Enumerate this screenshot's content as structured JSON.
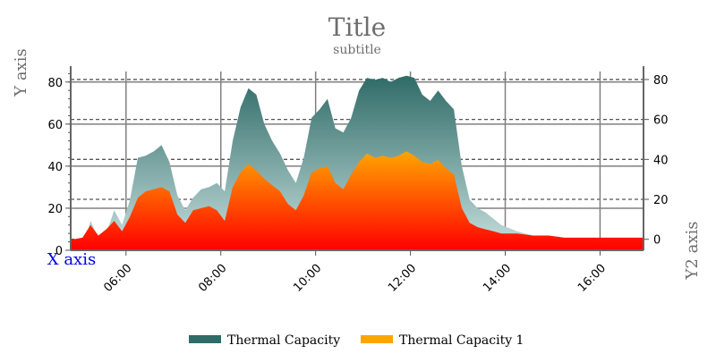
{
  "chart_data": {
    "type": "area",
    "title": "Title",
    "subtitle": "subtitle",
    "xlabel": "X axis",
    "ylabel": "Y axis",
    "y2label": "Y2 axis",
    "legend_position": "bottom-center",
    "grid": true,
    "xlim": [
      "04:50",
      "16:55"
    ],
    "xticks": [
      "06:00",
      "08:00",
      "10:00",
      "12:00",
      "14:00",
      "16:00"
    ],
    "ylim": [
      0,
      85
    ],
    "yticks": [
      0,
      20,
      40,
      60,
      80
    ],
    "y2lim": [
      -5.5,
      84
    ],
    "y2ticks": [
      0,
      20,
      40,
      60,
      80
    ],
    "series": [
      {
        "name": "Thermal Capacity",
        "color_top": "#2f6b67",
        "color_bottom": "#c7e0df",
        "points": [
          [
            "04:50",
            0
          ],
          [
            "05:05",
            0
          ],
          [
            "05:15",
            14
          ],
          [
            "05:25",
            6
          ],
          [
            "05:35",
            8
          ],
          [
            "05:45",
            19
          ],
          [
            "05:55",
            12
          ],
          [
            "06:05",
            24
          ],
          [
            "06:15",
            44
          ],
          [
            "06:25",
            45
          ],
          [
            "06:35",
            47
          ],
          [
            "06:45",
            50
          ],
          [
            "06:55",
            42
          ],
          [
            "07:05",
            26
          ],
          [
            "07:15",
            19
          ],
          [
            "07:25",
            25
          ],
          [
            "07:35",
            29
          ],
          [
            "07:45",
            30
          ],
          [
            "07:55",
            32
          ],
          [
            "08:05",
            28
          ],
          [
            "08:15",
            52
          ],
          [
            "08:25",
            68
          ],
          [
            "08:35",
            77
          ],
          [
            "08:45",
            74
          ],
          [
            "08:55",
            60
          ],
          [
            "09:05",
            52
          ],
          [
            "09:15",
            46
          ],
          [
            "09:25",
            38
          ],
          [
            "09:35",
            32
          ],
          [
            "09:45",
            44
          ],
          [
            "09:55",
            63
          ],
          [
            "10:05",
            67
          ],
          [
            "10:15",
            72
          ],
          [
            "10:25",
            58
          ],
          [
            "10:35",
            56
          ],
          [
            "10:45",
            63
          ],
          [
            "10:55",
            76
          ],
          [
            "11:05",
            82
          ],
          [
            "11:15",
            81
          ],
          [
            "11:25",
            82
          ],
          [
            "11:35",
            80
          ],
          [
            "11:45",
            82
          ],
          [
            "11:55",
            83
          ],
          [
            "12:05",
            82
          ],
          [
            "12:15",
            74
          ],
          [
            "12:25",
            71
          ],
          [
            "12:35",
            76
          ],
          [
            "12:45",
            71
          ],
          [
            "12:55",
            67
          ],
          [
            "13:05",
            40
          ],
          [
            "13:15",
            24
          ],
          [
            "13:25",
            20
          ],
          [
            "13:35",
            18
          ],
          [
            "13:45",
            15
          ],
          [
            "13:55",
            12
          ],
          [
            "14:15",
            9
          ],
          [
            "14:35",
            7
          ],
          [
            "14:55",
            5
          ],
          [
            "15:15",
            4
          ],
          [
            "15:35",
            3
          ],
          [
            "15:55",
            2
          ],
          [
            "16:15",
            2
          ],
          [
            "16:35",
            1
          ],
          [
            "16:55",
            1
          ]
        ]
      },
      {
        "name": "Thermal Capacity 1",
        "color_top": "#ffa500",
        "color_bottom": "#ff0000",
        "points": [
          [
            "04:50",
            5
          ],
          [
            "05:05",
            6
          ],
          [
            "05:15",
            12
          ],
          [
            "05:25",
            7
          ],
          [
            "05:35",
            10
          ],
          [
            "05:45",
            14
          ],
          [
            "05:55",
            9
          ],
          [
            "06:05",
            16
          ],
          [
            "06:15",
            25
          ],
          [
            "06:25",
            28
          ],
          [
            "06:35",
            29
          ],
          [
            "06:45",
            30
          ],
          [
            "06:55",
            28
          ],
          [
            "07:05",
            17
          ],
          [
            "07:15",
            13
          ],
          [
            "07:25",
            19
          ],
          [
            "07:35",
            20
          ],
          [
            "07:45",
            21
          ],
          [
            "07:55",
            19
          ],
          [
            "08:05",
            14
          ],
          [
            "08:15",
            30
          ],
          [
            "08:25",
            37
          ],
          [
            "08:35",
            41
          ],
          [
            "08:45",
            38
          ],
          [
            "08:55",
            34
          ],
          [
            "09:05",
            31
          ],
          [
            "09:15",
            28
          ],
          [
            "09:25",
            22
          ],
          [
            "09:35",
            19
          ],
          [
            "09:45",
            26
          ],
          [
            "09:55",
            37
          ],
          [
            "10:05",
            39
          ],
          [
            "10:15",
            40
          ],
          [
            "10:25",
            32
          ],
          [
            "10:35",
            29
          ],
          [
            "10:45",
            36
          ],
          [
            "10:55",
            42
          ],
          [
            "11:05",
            46
          ],
          [
            "11:15",
            44
          ],
          [
            "11:25",
            45
          ],
          [
            "11:35",
            44
          ],
          [
            "11:45",
            45
          ],
          [
            "11:55",
            47
          ],
          [
            "12:05",
            45
          ],
          [
            "12:15",
            42
          ],
          [
            "12:25",
            41
          ],
          [
            "12:35",
            43
          ],
          [
            "12:45",
            39
          ],
          [
            "12:55",
            36
          ],
          [
            "13:05",
            20
          ],
          [
            "13:15",
            13
          ],
          [
            "13:25",
            11
          ],
          [
            "13:35",
            10
          ],
          [
            "13:45",
            9
          ],
          [
            "13:55",
            8
          ],
          [
            "14:15",
            8
          ],
          [
            "14:35",
            7
          ],
          [
            "14:55",
            7
          ],
          [
            "15:15",
            6
          ],
          [
            "15:35",
            6
          ],
          [
            "15:55",
            6
          ],
          [
            "16:15",
            6
          ],
          [
            "16:35",
            6
          ],
          [
            "16:55",
            6
          ]
        ]
      }
    ]
  }
}
